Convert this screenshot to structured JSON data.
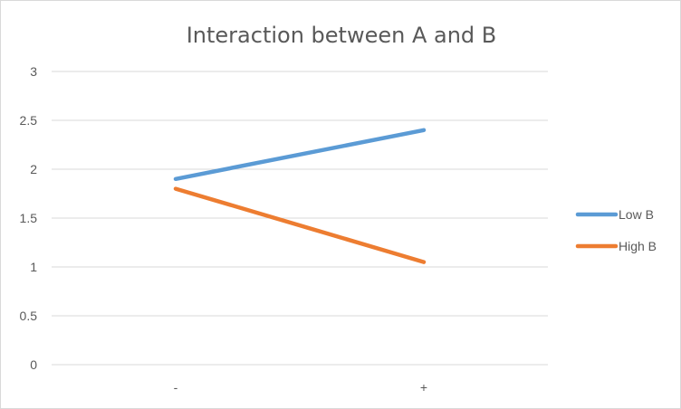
{
  "chart_data": {
    "type": "line",
    "title": "Interaction between A and B",
    "categories": [
      "-",
      "+"
    ],
    "series": [
      {
        "name": "Low B",
        "values": [
          1.9,
          2.4
        ],
        "color": "#5b9bd5"
      },
      {
        "name": "High B",
        "values": [
          1.8,
          1.05
        ],
        "color": "#ed7d31"
      }
    ],
    "ylim": [
      0,
      3
    ],
    "yticks": [
      "0",
      "0.5",
      "1",
      "1.5",
      "2",
      "2.5",
      "3"
    ],
    "grid": true,
    "legend": "right"
  }
}
